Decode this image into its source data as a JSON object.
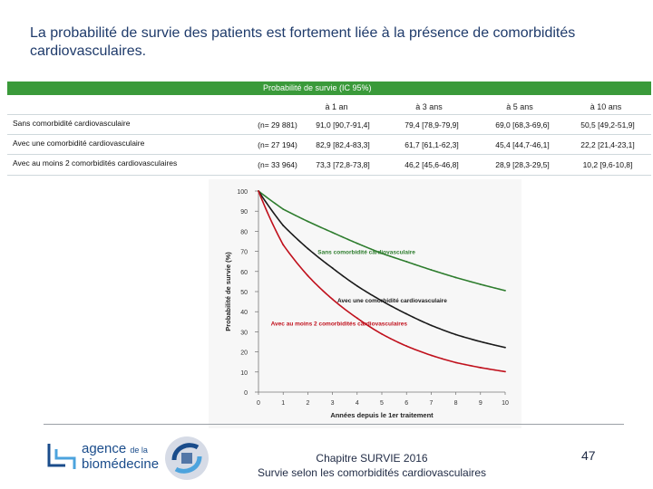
{
  "title": "La probabilité de survie des patients est fortement liée à la présence de comorbidités cardiovasculaires.",
  "table": {
    "header": "Probabilité de survie (IC 95%)",
    "columns": [
      "à 1 an",
      "à 3 ans",
      "à 5 ans",
      "à 10 ans"
    ],
    "rows": [
      {
        "label": "Sans comorbidité cardiovasculaire",
        "n": "(n= 29 881)",
        "values": [
          "91,0 [90,7-91,4]",
          "79,4 [78,9-79,9]",
          "69,0 [68,3-69,6]",
          "50,5 [49,2-51,9]"
        ]
      },
      {
        "label": "Avec une comorbidité cardiovasculaire",
        "n": "(n= 27 194)",
        "values": [
          "82,9 [82,4-83,3]",
          "61,7 [61,1-62,3]",
          "45,4 [44,7-46,1]",
          "22,2 [21,4-23,1]"
        ]
      },
      {
        "label": "Avec au moins 2 comorbidités cardiovasculaires",
        "n": "(n= 33 964)",
        "values": [
          "73,3 [72,8-73,8]",
          "46,2 [45,6-46,8]",
          "28,9 [28,3-29,5]",
          "10,2 [9,6-10,8]"
        ]
      }
    ]
  },
  "chart_data": {
    "type": "line",
    "xlabel": "Années depuis le 1er traitement",
    "ylabel": "Probabilité de survie (%)",
    "xlim": [
      0,
      10
    ],
    "ylim": [
      0,
      100
    ],
    "xticks": [
      0,
      1,
      2,
      3,
      4,
      5,
      6,
      7,
      8,
      9,
      10
    ],
    "yticks": [
      0,
      10,
      20,
      30,
      40,
      50,
      60,
      70,
      80,
      90,
      100
    ],
    "series": [
      {
        "name": "Sans comorbidité cardiovasculaire",
        "color": "#2e7d2e",
        "x": [
          0,
          1,
          2,
          3,
          4,
          5,
          6,
          7,
          8,
          9,
          10
        ],
        "y": [
          100,
          91.0,
          84.9,
          79.4,
          74.0,
          69.0,
          64.9,
          60.8,
          57.0,
          53.6,
          50.5
        ]
      },
      {
        "name": "Avec une comorbidité cardiovasculaire",
        "color": "#1a1a1a",
        "x": [
          0,
          1,
          2,
          3,
          4,
          5,
          6,
          7,
          8,
          9,
          10
        ],
        "y": [
          100,
          82.9,
          71.4,
          61.7,
          52.8,
          45.4,
          38.9,
          33.2,
          28.6,
          25.1,
          22.2
        ]
      },
      {
        "name": "Avec au moins 2 comorbidités cardiovasculaires",
        "color": "#c0101c",
        "x": [
          0,
          1,
          2,
          3,
          4,
          5,
          6,
          7,
          8,
          9,
          10
        ],
        "y": [
          100,
          73.3,
          57.9,
          46.2,
          36.8,
          28.9,
          22.9,
          18.3,
          14.7,
          12.2,
          10.2
        ]
      }
    ]
  },
  "footer": {
    "line1": "Chapitre SURVIE 2016",
    "line2": "Survie selon les comorbidités cardiovasculaires",
    "page": "47"
  },
  "logo": {
    "line1": "agence",
    "de": "de la",
    "line2": "biomédecine",
    "color": "#1a4c8b"
  }
}
